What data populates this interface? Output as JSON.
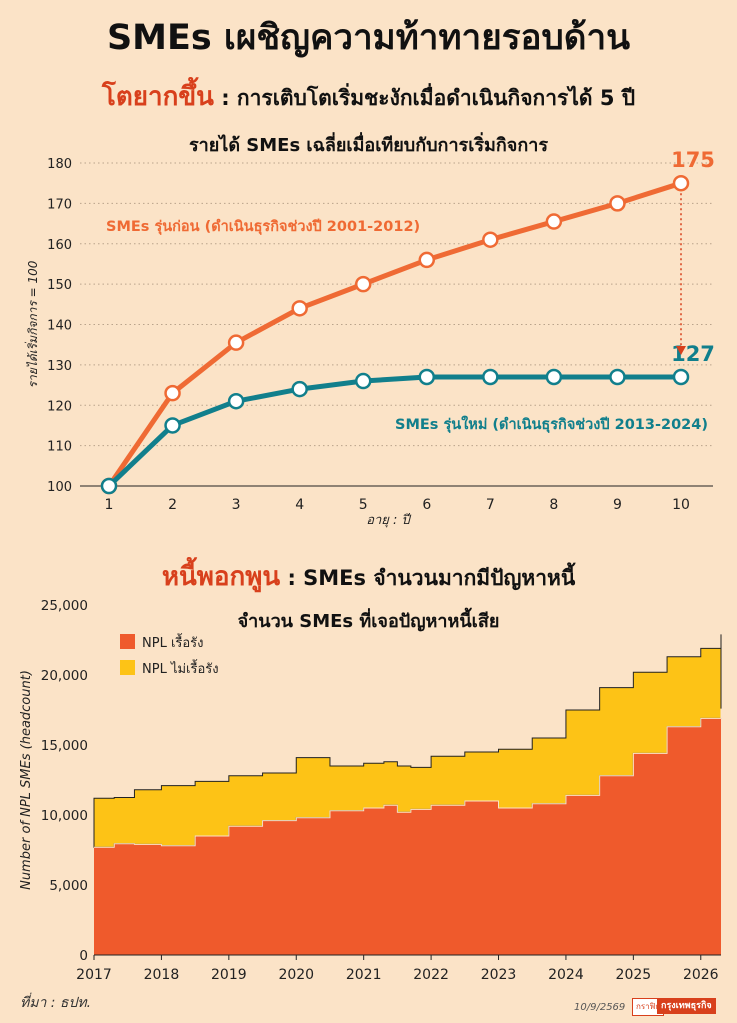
{
  "headline": "SMEs เผชิญความท้าทายรอบด้าน",
  "section1": {
    "accent": "โตยากขึ้น",
    "text": " : การเติบโตเริ่มชะงักเมื่อดำเนินกิจการได้ 5 ปี"
  },
  "section2": {
    "accent": "หนี้พอกพูน",
    "text": " : SMEs จำนวนมากมีปัญหาหนี้"
  },
  "source": "ที่มา : ธปท.",
  "date": "10/9/2569",
  "credit_label": "กราฟิก",
  "credit_brand": "กรุงเทพธุรกิจ",
  "colors": {
    "orange": "#ef6a34",
    "teal": "#117f8c",
    "npl_chronic": "#ef5a2c",
    "npl_non_chronic": "#fdc316"
  },
  "chart_data": [
    {
      "type": "line",
      "title": "รายได้ SMEs เฉลี่ยเมื่อเทียบกับการเริ่มกิจการ",
      "xlabel": "อายุ : ปี",
      "ylabel": "รายได้เริ่มกิจการ = 100",
      "x": [
        1,
        2,
        3,
        4,
        5,
        6,
        7,
        8,
        9,
        10
      ],
      "ylim": [
        100,
        180
      ],
      "yticks": [
        100,
        110,
        120,
        130,
        140,
        150,
        160,
        170,
        180
      ],
      "grid": "horizontal dotted",
      "series": [
        {
          "name": "SMEs รุ่นก่อน (ดำเนินธุรกิจช่วงปี 2001-2012)",
          "color": "#ef6a34",
          "values": [
            100,
            123,
            135.5,
            144,
            150,
            156,
            161,
            165.5,
            170,
            175
          ]
        },
        {
          "name": "SMEs รุ่นใหม่ (ดำเนินธุรกิจช่วงปี 2013-2024)",
          "color": "#117f8c",
          "values": [
            100,
            115,
            121,
            124,
            126,
            127,
            127,
            127,
            127,
            127
          ]
        }
      ],
      "end_labels": [
        "175",
        "127"
      ]
    },
    {
      "type": "area",
      "title": "จำนวน SMEs ที่เจอปัญหาหนี้เสีย",
      "ylabel": "Number of NPL SMEs (headcount)",
      "ylim": [
        0,
        25000
      ],
      "yticks": [
        "0",
        "5,000",
        "10,000",
        "15,000",
        "20,000",
        "25,000"
      ],
      "xlim": [
        2017,
        2026.3
      ],
      "xticks": [
        "2017",
        "2018",
        "2019",
        "2020",
        "2021",
        "2022",
        "2023",
        "2024",
        "2025",
        "2026"
      ],
      "stacked": true,
      "legend": "top-left",
      "series": [
        {
          "name": "NPL เรื้อรัง",
          "color": "#ef5a2c",
          "x": [
            2017,
            2017.3,
            2017.6,
            2018,
            2018.5,
            2019,
            2019.5,
            2020,
            2020.5,
            2021,
            2021.3,
            2021.5,
            2021.7,
            2022,
            2022.5,
            2023,
            2023.5,
            2024,
            2024.5,
            2025,
            2025.5,
            2026,
            2026.3
          ],
          "values": [
            7700,
            7950,
            7900,
            7800,
            8500,
            9200,
            9600,
            9800,
            10300,
            10500,
            10700,
            10200,
            10400,
            10700,
            11000,
            10500,
            10800,
            11400,
            12800,
            14400,
            16300,
            16900,
            17600
          ]
        },
        {
          "name": "NPL ไม่เรื้อรัง",
          "color": "#fdc316",
          "x": [
            2017,
            2017.3,
            2017.6,
            2018,
            2018.5,
            2019,
            2019.5,
            2020,
            2020.5,
            2021,
            2021.3,
            2021.5,
            2021.7,
            2022,
            2022.5,
            2023,
            2023.5,
            2024,
            2024.5,
            2025,
            2025.5,
            2026,
            2026.3
          ],
          "values": [
            3500,
            3300,
            3900,
            4300,
            3900,
            3600,
            3400,
            4300,
            3200,
            3200,
            3100,
            3300,
            3000,
            3500,
            3500,
            4200,
            4700,
            6100,
            6300,
            5800,
            5000,
            5000,
            5300
          ]
        }
      ]
    }
  ]
}
